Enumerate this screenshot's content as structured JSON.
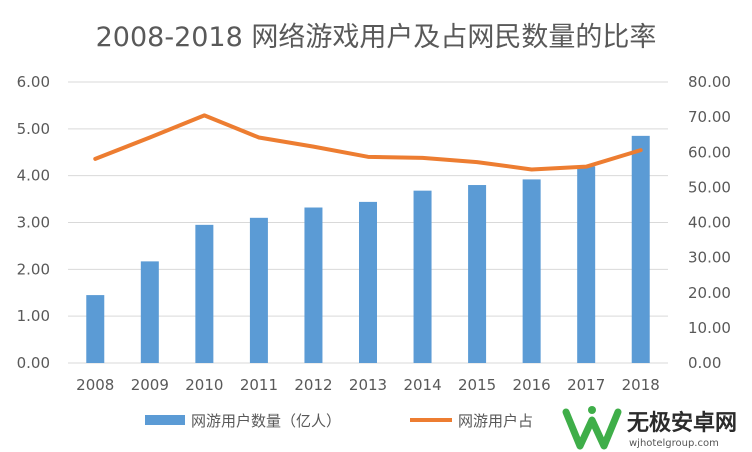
{
  "chart_data": {
    "type": "bar",
    "title": "2008-2018 网络游戏用户及占网民数量的比率",
    "categories": [
      "2008",
      "2009",
      "2010",
      "2011",
      "2012",
      "2013",
      "2014",
      "2015",
      "2016",
      "2017",
      "2018"
    ],
    "series": [
      {
        "name": "网游用户数量（亿人）",
        "type": "bar",
        "axis": "left",
        "values": [
          1.45,
          2.17,
          2.95,
          3.1,
          3.32,
          3.44,
          3.68,
          3.8,
          3.92,
          4.2,
          4.85
        ]
      },
      {
        "name": "网游用户占",
        "type": "line",
        "axis": "right",
        "values": [
          58.1,
          64.2,
          70.5,
          64.2,
          61.6,
          58.7,
          58.4,
          57.2,
          55.1,
          55.9,
          60.6
        ]
      }
    ],
    "y_left": {
      "min": 0,
      "max": 6,
      "step": 1,
      "ticks": [
        "0.00",
        "1.00",
        "2.00",
        "3.00",
        "4.00",
        "5.00",
        "6.00"
      ]
    },
    "y_right": {
      "min": 0,
      "max": 80,
      "step": 10,
      "ticks": [
        "0.00",
        "10.00",
        "20.00",
        "30.00",
        "40.00",
        "50.00",
        "60.00",
        "70.00",
        "80.00"
      ]
    },
    "grid": true,
    "legend": "bottom"
  },
  "colors": {
    "bar": "#5b9bd5",
    "line": "#ed7d31",
    "grid": "#d9d9d9",
    "text": "#595959"
  },
  "watermark": {
    "name": "无极安卓网",
    "url": "wjhotelgroup.com",
    "icon": "w-logo-icon"
  }
}
